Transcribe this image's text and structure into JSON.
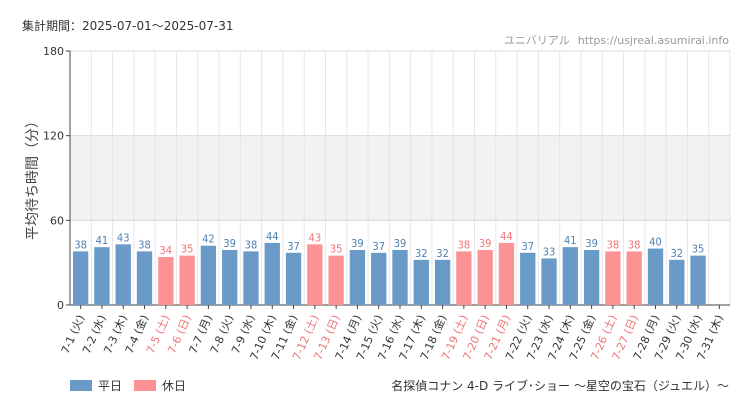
{
  "header": {
    "period_label": "集計期間：2025-07-01～2025-07-31",
    "site_name": "ユニバリアル",
    "site_url": "https://usjreal.asumirai.info"
  },
  "attraction_name": "名探偵コナン 4-D ライブ･ショー ～星空の宝石（ジュエル）～",
  "colors": {
    "weekday": "#6a9bc8",
    "holiday": "#fd9294",
    "weekday_text": "#4f7fb0",
    "holiday_text": "#f07276",
    "band": "#f2f2f2",
    "grid": "#e6e6e6"
  },
  "chart_data": {
    "type": "bar",
    "title": "",
    "xlabel": "",
    "ylabel": "平均待ち時間（分）",
    "ylim": [
      0,
      180
    ],
    "yticks": [
      0,
      60,
      120,
      180
    ],
    "shaded_band": [
      60,
      120
    ],
    "grid": true,
    "legend_position": "bottom-left",
    "categories": [
      "7-1 (火)",
      "7-2 (水)",
      "7-3 (木)",
      "7-4 (金)",
      "7-5 (土)",
      "7-6 (日)",
      "7-7 (月)",
      "7-8 (火)",
      "7-9 (水)",
      "7-10 (木)",
      "7-11 (金)",
      "7-12 (土)",
      "7-13 (日)",
      "7-14 (月)",
      "7-15 (火)",
      "7-16 (水)",
      "7-17 (木)",
      "7-18 (金)",
      "7-19 (土)",
      "7-20 (日)",
      "7-21 (月)",
      "7-22 (火)",
      "7-23 (水)",
      "7-24 (木)",
      "7-25 (金)",
      "7-26 (土)",
      "7-27 (日)",
      "7-28 (月)",
      "7-29 (火)",
      "7-30 (水)",
      "7-31 (木)"
    ],
    "values": [
      38,
      41,
      43,
      38,
      34,
      35,
      42,
      39,
      38,
      44,
      37,
      43,
      35,
      39,
      37,
      39,
      32,
      32,
      38,
      39,
      44,
      37,
      33,
      41,
      39,
      38,
      38,
      40,
      32,
      35,
      null
    ],
    "day_type": [
      "weekday",
      "weekday",
      "weekday",
      "weekday",
      "holiday",
      "holiday",
      "weekday",
      "weekday",
      "weekday",
      "weekday",
      "weekday",
      "holiday",
      "holiday",
      "weekday",
      "weekday",
      "weekday",
      "weekday",
      "weekday",
      "holiday",
      "holiday",
      "holiday",
      "weekday",
      "weekday",
      "weekday",
      "weekday",
      "holiday",
      "holiday",
      "weekday",
      "weekday",
      "weekday",
      "weekday"
    ],
    "legend": [
      {
        "key": "weekday",
        "label": "平日"
      },
      {
        "key": "holiday",
        "label": "休日"
      }
    ]
  }
}
